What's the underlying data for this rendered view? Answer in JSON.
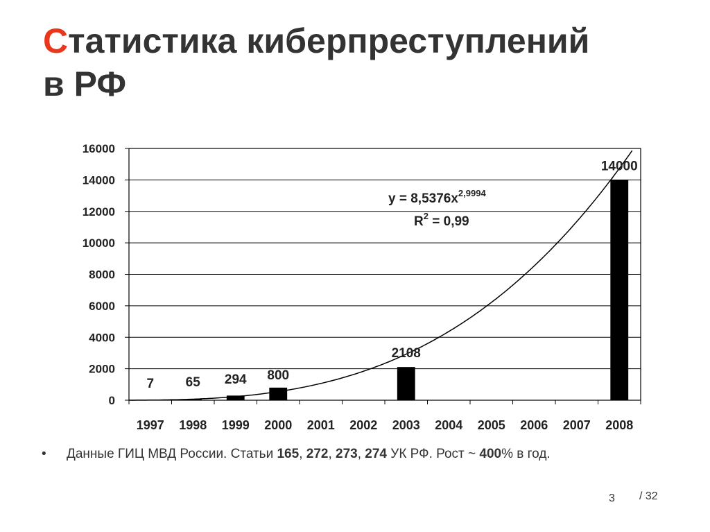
{
  "title": {
    "first_letter": "С",
    "rest_line1": "татистика киберпреступлений",
    "line2": "в РФ"
  },
  "chart_data": {
    "type": "bar",
    "categories": [
      "1997",
      "1998",
      "1999",
      "2000",
      "2001",
      "2002",
      "2003",
      "2004",
      "2005",
      "2006",
      "2007",
      "2008"
    ],
    "values": [
      7,
      65,
      294,
      800,
      null,
      null,
      2108,
      null,
      null,
      null,
      null,
      14000
    ],
    "data_labels": [
      "7",
      "65",
      "294",
      "800",
      "",
      "",
      "2108",
      "",
      "",
      "",
      "",
      "14000"
    ],
    "ylim": [
      0,
      16000
    ],
    "yticks": [
      0,
      2000,
      4000,
      6000,
      8000,
      10000,
      12000,
      14000,
      16000
    ],
    "grid": true,
    "bar_color": "#000000",
    "trendline": {
      "type": "power",
      "coefficient": 8.5376,
      "exponent": 2.9994,
      "equation_label": "y = 8,5376x",
      "equation_exponent": "2,9994",
      "r2_label_prefix": "R",
      "r2_label_sup": "2",
      "r2_label_suffix": " = 0,99"
    }
  },
  "bullet": {
    "marker": "•",
    "text_parts": [
      {
        "t": "Данные ГИЦ МВД России. Статьи ",
        "b": false
      },
      {
        "t": "165",
        "b": true
      },
      {
        "t": ", ",
        "b": false
      },
      {
        "t": "272",
        "b": true
      },
      {
        "t": ", ",
        "b": false
      },
      {
        "t": "273",
        "b": true
      },
      {
        "t": ", ",
        "b": false
      },
      {
        "t": "274",
        "b": true
      },
      {
        "t": " УК РФ. Рост ~ ",
        "b": false
      },
      {
        "t": "400",
        "b": true
      },
      {
        "t": "% в год.",
        "b": false
      }
    ]
  },
  "footer": {
    "page": "3",
    "total": "/ 32"
  },
  "colors": {
    "accent": "#e8371b",
    "text": "#333333"
  }
}
